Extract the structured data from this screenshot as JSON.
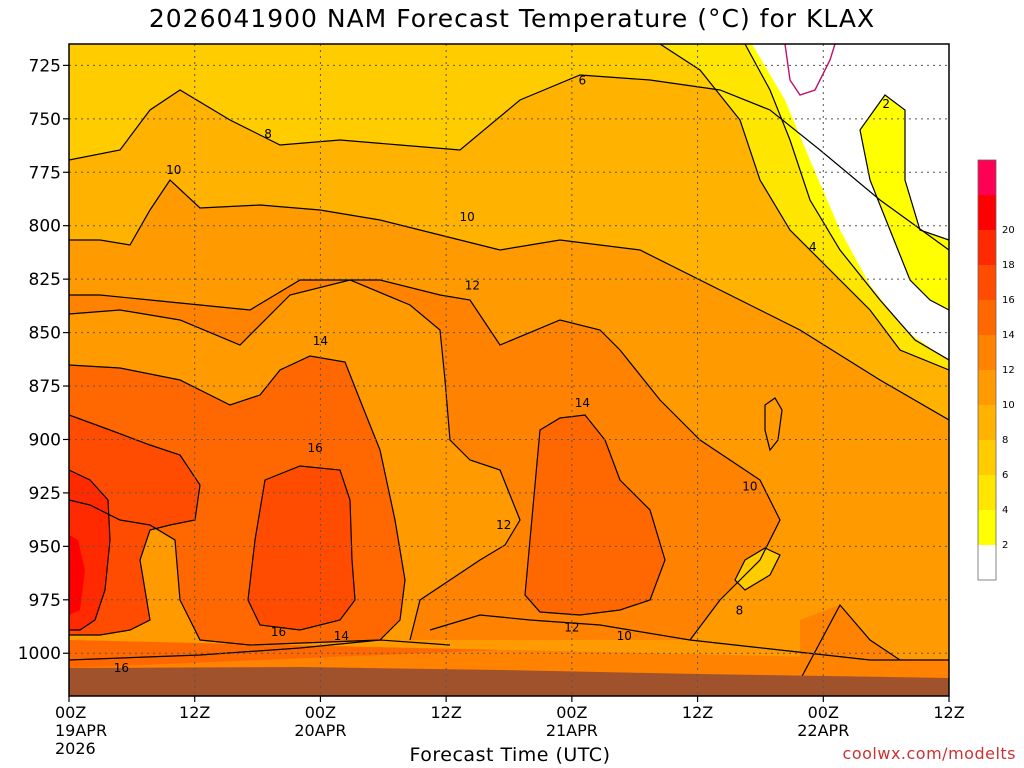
{
  "chart_data": {
    "type": "heatmap",
    "title": "2026041900 NAM Forecast Temperature (°C) for KLAX",
    "xlabel": "Forecast Time (UTC)",
    "ylabel": "",
    "credit": "coolwx.com/modelts",
    "y_axis": {
      "scale": "pressure",
      "range": [
        1020,
        715
      ],
      "ticks": [
        "725",
        "750",
        "775",
        "800",
        "825",
        "850",
        "875",
        "900",
        "925",
        "950",
        "975",
        "1000"
      ]
    },
    "x_axis": {
      "range_hours": [
        0,
        84
      ],
      "ticks": [
        {
          "hour": 0,
          "line1": "00Z",
          "line2": "19APR",
          "line3": "2026"
        },
        {
          "hour": 12,
          "line1": "12Z",
          "line2": "",
          "line3": ""
        },
        {
          "hour": 24,
          "line1": "00Z",
          "line2": "20APR",
          "line3": ""
        },
        {
          "hour": 36,
          "line1": "12Z",
          "line2": "",
          "line3": ""
        },
        {
          "hour": 48,
          "line1": "00Z",
          "line2": "21APR",
          "line3": ""
        },
        {
          "hour": 60,
          "line1": "12Z",
          "line2": "",
          "line3": ""
        },
        {
          "hour": 72,
          "line1": "00Z",
          "line2": "22APR",
          "line3": ""
        },
        {
          "hour": 84,
          "line1": "12Z",
          "line2": "",
          "line3": ""
        }
      ]
    },
    "grid": true,
    "colorbar": {
      "placement": "right",
      "levels": [
        {
          "label": "",
          "color": "#ffffff"
        },
        {
          "label": "2",
          "color": "#ffff00"
        },
        {
          "label": "4",
          "color": "#ffe600"
        },
        {
          "label": "6",
          "color": "#ffcc00"
        },
        {
          "label": "8",
          "color": "#ffb300"
        },
        {
          "label": "10",
          "color": "#ff9a00"
        },
        {
          "label": "12",
          "color": "#ff8200"
        },
        {
          "label": "14",
          "color": "#ff6800"
        },
        {
          "label": "16",
          "color": "#ff4c00"
        },
        {
          "label": "18",
          "color": "#ff2a00"
        },
        {
          "label": "20",
          "color": "#ff0000"
        },
        {
          "label": "",
          "color": "#ff0055"
        }
      ]
    },
    "ground_color": "#a0522d",
    "contour_labels": [
      {
        "value": "6",
        "hour": 49.0,
        "p": 732
      },
      {
        "value": "8",
        "hour": 19.0,
        "p": 757
      },
      {
        "value": "10",
        "hour": 10.0,
        "p": 774
      },
      {
        "value": "10",
        "hour": 38.0,
        "p": 796
      },
      {
        "value": "12",
        "hour": 38.5,
        "p": 828
      },
      {
        "value": "14",
        "hour": 24.0,
        "p": 854
      },
      {
        "value": "14",
        "hour": 49.0,
        "p": 883
      },
      {
        "value": "16",
        "hour": 23.5,
        "p": 904
      },
      {
        "value": "12",
        "hour": 41.5,
        "p": 940
      },
      {
        "value": "10",
        "hour": 65.0,
        "p": 922
      },
      {
        "value": "8",
        "hour": 64.0,
        "p": 980
      },
      {
        "value": "2",
        "hour": 78.0,
        "p": 743
      },
      {
        "value": "4",
        "hour": 71.0,
        "p": 810
      },
      {
        "value": "16",
        "hour": 20.0,
        "p": 990
      },
      {
        "value": "14",
        "hour": 26.0,
        "p": 992
      },
      {
        "value": "12",
        "hour": 48.0,
        "p": 988
      },
      {
        "value": "10",
        "hour": 53.0,
        "p": 992
      },
      {
        "value": "16",
        "hour": 5.0,
        "p": 1007
      }
    ]
  }
}
